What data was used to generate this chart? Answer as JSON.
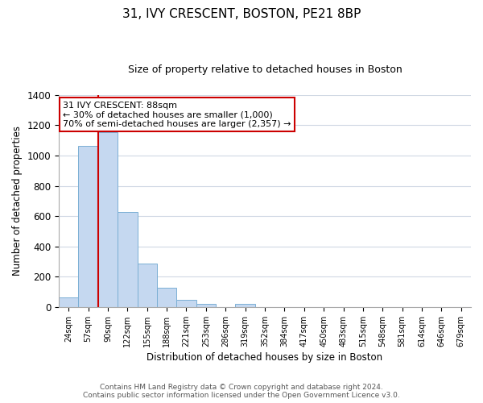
{
  "title": "31, IVY CRESCENT, BOSTON, PE21 8BP",
  "subtitle": "Size of property relative to detached houses in Boston",
  "xlabel": "Distribution of detached houses by size in Boston",
  "ylabel": "Number of detached properties",
  "categories": [
    "24sqm",
    "57sqm",
    "90sqm",
    "122sqm",
    "155sqm",
    "188sqm",
    "221sqm",
    "253sqm",
    "286sqm",
    "319sqm",
    "352sqm",
    "384sqm",
    "417sqm",
    "450sqm",
    "483sqm",
    "515sqm",
    "548sqm",
    "581sqm",
    "614sqm",
    "646sqm",
    "679sqm"
  ],
  "values": [
    65,
    1065,
    1155,
    630,
    285,
    130,
    47,
    22,
    0,
    22,
    0,
    0,
    0,
    0,
    0,
    0,
    0,
    0,
    0,
    0,
    0
  ],
  "bar_color": "#c5d8f0",
  "bar_edge_color": "#7bafd4",
  "vline_color": "#cc0000",
  "annotation_title": "31 IVY CRESCENT: 88sqm",
  "annotation_line1": "← 30% of detached houses are smaller (1,000)",
  "annotation_line2": "70% of semi-detached houses are larger (2,357) →",
  "annotation_box_color": "#ffffff",
  "annotation_box_edge": "#cc0000",
  "ylim": [
    0,
    1400
  ],
  "yticks": [
    0,
    200,
    400,
    600,
    800,
    1000,
    1200,
    1400
  ],
  "footer_line1": "Contains HM Land Registry data © Crown copyright and database right 2024.",
  "footer_line2": "Contains public sector information licensed under the Open Government Licence v3.0.",
  "background_color": "#ffffff",
  "grid_color": "#d0d8e4"
}
